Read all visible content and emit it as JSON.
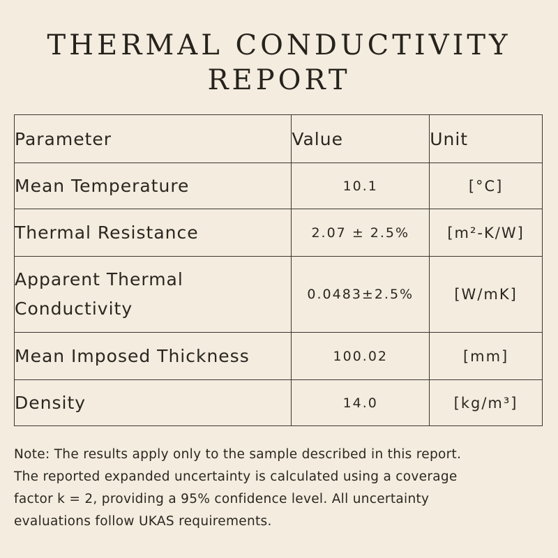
{
  "title": {
    "line1": "THERMAL CONDUCTIVITY",
    "line2": "REPORT"
  },
  "table": {
    "headers": {
      "parameter": "Parameter",
      "value": "Value",
      "unit": "Unit"
    },
    "rows": [
      {
        "parameter": "Mean Temperature",
        "value": "10.1",
        "unit": "[°C]"
      },
      {
        "parameter": "Thermal Resistance",
        "value": "2.07 ± 2.5%",
        "unit": "[m²-K/W]"
      },
      {
        "parameter_line1": "Apparent Thermal",
        "parameter_line2": "Conductivity",
        "value": "0.0483±2.5%",
        "unit": "[W/mK]"
      },
      {
        "parameter": "Mean Imposed Thickness",
        "value": "100.02",
        "unit": "[mm]"
      },
      {
        "parameter": "Density",
        "value": "14.0",
        "unit": "[kg/m³]"
      }
    ]
  },
  "note": {
    "line1": "Note: The results apply only to the sample described in this report.",
    "line2": "The reported expanded uncertainty is calculated using a coverage",
    "line3": "factor k = 2, providing a 95% confidence level. All uncertainty",
    "line4": "evaluations follow UKAS requirements."
  }
}
